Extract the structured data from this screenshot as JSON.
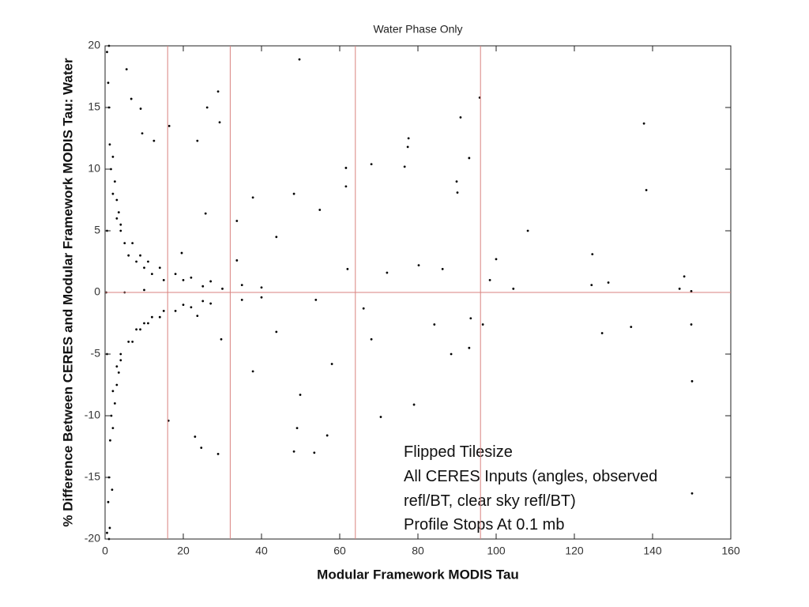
{
  "chart_data": {
    "type": "scatter",
    "title": "Water Phase Only",
    "xlabel": "Modular Framework MODIS Tau",
    "ylabel": "% Difference Between CERES and Modular Framework MODIS Tau: Water",
    "annotation": [
      "Flipped Tilesize",
      "All CERES Inputs (angles, observed",
      "refl/BT, clear sky refl/BT)",
      "Profile Stops At 0.1 mb"
    ],
    "color": "#000000",
    "line_color": "#d9827f",
    "vlines": [
      16,
      32,
      64,
      96
    ],
    "hlines": [
      0
    ],
    "xlim": [
      0,
      160
    ],
    "xticks": [
      0,
      20,
      40,
      60,
      80,
      100,
      120,
      140,
      160
    ],
    "ylim": [
      -20,
      20
    ],
    "yticks": [
      -20,
      -15,
      -10,
      -5,
      0,
      5,
      10,
      15,
      20
    ],
    "x": [
      49.7,
      95.8,
      137.8,
      5.5,
      6.7,
      9.1,
      16.4,
      28.9,
      26.1,
      29.3,
      23.6,
      9.5,
      12.5,
      77.6,
      77.4,
      90.9,
      93.1,
      76.6,
      68.1,
      61.6,
      89.9,
      90.1,
      138.4,
      61.6,
      124.6,
      108.1,
      100,
      124.4,
      128.7,
      148.1,
      149.9,
      146.9,
      149.9,
      150.1,
      150.1,
      134.5,
      127.1,
      96.6,
      93.5,
      93.1,
      88.5,
      79,
      70.5,
      56.8,
      53.5,
      48.3,
      49.1,
      28.9,
      24.6,
      23,
      16.2,
      1.8,
      1.2,
      43.8,
      37.8,
      48.3,
      33.7,
      54.9,
      62,
      72.1,
      80.2,
      86.3,
      84.2,
      68.1,
      58,
      49.9,
      37.8,
      29.7,
      23.6,
      19.6,
      25.7,
      33.7,
      43.8,
      53.9,
      66.1,
      98.4,
      104.4,
      0.5,
      0.8,
      1,
      1.2,
      1.5,
      2,
      3,
      4,
      5,
      6,
      8,
      10,
      12,
      15,
      0.5,
      0.8,
      1,
      1.3,
      1.6,
      2,
      3,
      4,
      6,
      8,
      10,
      12,
      15,
      20,
      25,
      30,
      20,
      25,
      5,
      10,
      0.3,
      0.5,
      0.5,
      1,
      1,
      2,
      2.5,
      3,
      3.5,
      4,
      7,
      9,
      11,
      14,
      18,
      22,
      27,
      35,
      40,
      2,
      2.5,
      3,
      3.5,
      4,
      7,
      9,
      11,
      14,
      18,
      22,
      27,
      35,
      40
    ],
    "values": [
      18.9,
      15.8,
      13.7,
      18.1,
      15.7,
      14.9,
      13.5,
      16.3,
      15.0,
      13.8,
      12.3,
      12.9,
      12.3,
      12.5,
      11.8,
      14.2,
      10.9,
      10.2,
      10.4,
      10.1,
      9.0,
      8.1,
      8.3,
      8.6,
      3.1,
      5.0,
      2.7,
      0.6,
      0.8,
      1.3,
      0.1,
      0.3,
      -2.6,
      -7.2,
      -16.3,
      -2.8,
      -3.3,
      -2.6,
      -2.1,
      -4.5,
      -5.0,
      -9.1,
      -10.1,
      -11.6,
      -13.0,
      -12.9,
      -11.0,
      -13.1,
      -12.6,
      -11.7,
      -10.4,
      -16,
      -19.1,
      4.5,
      7.7,
      8.0,
      5.8,
      6.7,
      1.9,
      1.6,
      2.2,
      1.9,
      -2.6,
      -3.8,
      -5.8,
      -8.3,
      -6.4,
      -3.8,
      -1.9,
      3.2,
      6.4,
      2.6,
      -3.2,
      -0.6,
      -1.3,
      1,
      0.3,
      19.5,
      17,
      15,
      12,
      10,
      8,
      6,
      5,
      4,
      3,
      2.5,
      2,
      1.5,
      1,
      -19.5,
      -17,
      -15,
      -12,
      -10,
      -8,
      -6,
      -5,
      -4,
      -3,
      -2.5,
      -2,
      -1.5,
      1,
      0.5,
      0.3,
      -1,
      -0.7,
      0,
      0.2,
      0,
      5,
      -5,
      20,
      -20,
      11,
      9,
      7.5,
      6.5,
      5.5,
      4,
      3,
      2.5,
      2,
      1.5,
      1.2,
      0.9,
      0.6,
      0.4,
      -11,
      -9,
      -7.5,
      -6.5,
      -5.5,
      -4,
      -3,
      -2.5,
      -2,
      -1.5,
      -1.2,
      -0.9,
      -0.6,
      -0.4
    ]
  }
}
